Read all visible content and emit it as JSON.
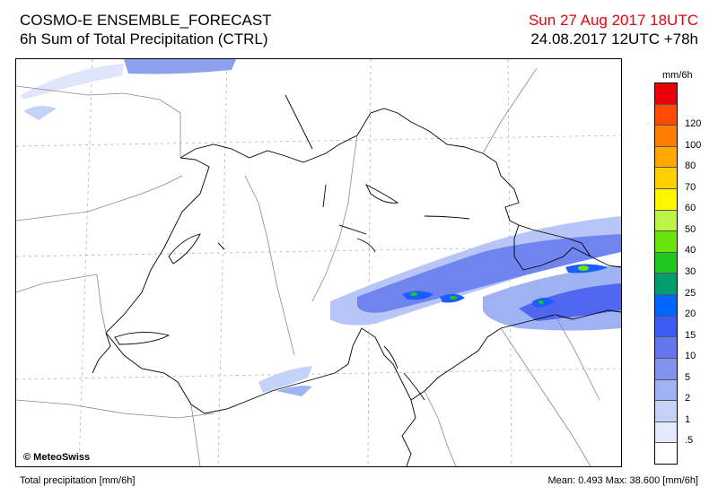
{
  "header": {
    "title_line1": "COSMO-E ENSEMBLE_FORECAST",
    "title_line2": "6h Sum of Total Precipitation (CTRL)",
    "valid_time": "Sun 27 Aug 2017 18UTC",
    "run_time": "24.08.2017 12UTC +78h"
  },
  "map": {
    "copyright": "© MeteoSwiss"
  },
  "legend": {
    "unit": "mm/6h",
    "levels": [
      {
        "label": "",
        "color": "#e8000b"
      },
      {
        "label": "120",
        "color": "#ff4a00"
      },
      {
        "label": "100",
        "color": "#ff7d00"
      },
      {
        "label": "80",
        "color": "#ffa900"
      },
      {
        "label": "70",
        "color": "#ffcf00"
      },
      {
        "label": "60",
        "color": "#fff600"
      },
      {
        "label": "50",
        "color": "#bdf247"
      },
      {
        "label": "40",
        "color": "#69e40a"
      },
      {
        "label": "30",
        "color": "#1ec81e"
      },
      {
        "label": "25",
        "color": "#009e6e"
      },
      {
        "label": "20",
        "color": "#0066ff"
      },
      {
        "label": "15",
        "color": "#3b5bf5"
      },
      {
        "label": "10",
        "color": "#6477ef"
      },
      {
        "label": "5",
        "color": "#7f93ef"
      },
      {
        "label": "2",
        "color": "#9fb2f4"
      },
      {
        "label": "1",
        "color": "#c4d2f8"
      },
      {
        "label": ".5",
        "color": "#e4ebfc"
      },
      {
        "label": "",
        "color": "#ffffff"
      }
    ]
  },
  "footer": {
    "left": "Total precipitation [mm/6h]",
    "right": "Mean:   0.493 Max:  38.600 [mm/6h]"
  }
}
